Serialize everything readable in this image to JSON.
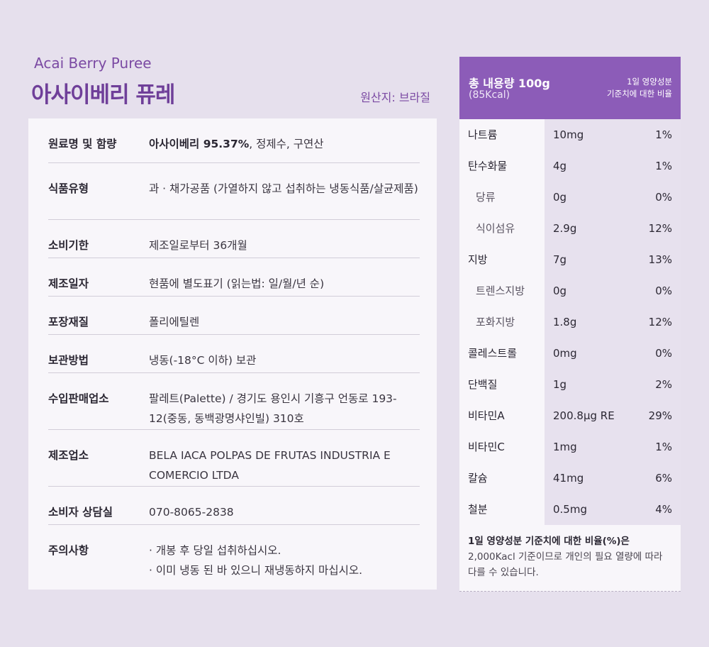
{
  "header": {
    "title_en": "Acai Berry Puree",
    "title_ko": "아사이베리 퓨레",
    "origin": "원산지: 브라질"
  },
  "info": {
    "rows": [
      {
        "label": "원료명 및 함량",
        "value_bold": "아사이베리 95.37%",
        "value": ", 정제수, 구연산"
      },
      {
        "label": "식품유형",
        "value": "과 · 채가공품 (가열하지 않고 섭취하는 냉동식품/살균제품)"
      },
      {
        "label": "소비기한",
        "value": "제조일로부터 36개월"
      },
      {
        "label": "제조일자",
        "value": "현품에 별도표기 (읽는법: 일/월/년 순)"
      },
      {
        "label": "포장재질",
        "value": "폴리에틸렌"
      },
      {
        "label": "보관방법",
        "value": "냉동(-18°C 이하) 보관"
      },
      {
        "label": "수입판매업소",
        "value": "팔레트(Palette) / 경기도 용인시 기흥구 언동로 193-12(중동, 동백광명샤인빌) 310호"
      },
      {
        "label": "제조업소",
        "value": "BELA IACA POLPAS DE FRUTAS INDUSTRIA E COMERCIO LTDA"
      },
      {
        "label": "소비자 상담실",
        "value": "070-8065-2838"
      },
      {
        "label": "주의사항",
        "value_lines": [
          "· 개봉 후 당일 섭취하십시오.",
          "· 이미 냉동 된 바 있으니 재냉동하지 마십시오."
        ]
      }
    ]
  },
  "nutrition": {
    "total": "총 내용량 100g",
    "kcal": "(85Kcal)",
    "daily_1": "1일 영양성분",
    "daily_2": "기준치에 대한 비율",
    "rows": [
      {
        "name": "나트륨",
        "amount": "10mg",
        "pct": "1%",
        "sub": false
      },
      {
        "name": "탄수화물",
        "amount": "4g",
        "pct": "1%",
        "sub": false
      },
      {
        "name": "당류",
        "amount": "0g",
        "pct": "0%",
        "sub": true
      },
      {
        "name": "식이섬유",
        "amount": "2.9g",
        "pct": "12%",
        "sub": true
      },
      {
        "name": "지방",
        "amount": "7g",
        "pct": "13%",
        "sub": false
      },
      {
        "name": "트렌스지방",
        "amount": "0g",
        "pct": "0%",
        "sub": true
      },
      {
        "name": "포화지방",
        "amount": "1.8g",
        "pct": "12%",
        "sub": true
      },
      {
        "name": "콜레스트롤",
        "amount": "0mg",
        "pct": "0%",
        "sub": false
      },
      {
        "name": "단백질",
        "amount": "1g",
        "pct": "2%",
        "sub": false
      },
      {
        "name": "비타민A",
        "amount": "200.8μg RE",
        "pct": "29%",
        "sub": false
      },
      {
        "name": "비타민C",
        "amount": "1mg",
        "pct": "1%",
        "sub": false
      },
      {
        "name": "칼슘",
        "amount": "41mg",
        "pct": "6%",
        "sub": false
      },
      {
        "name": "철분",
        "amount": "0.5mg",
        "pct": "4%",
        "sub": false
      }
    ],
    "foot_title": "1일 영양성분 기준치에 대한 비율(%)은",
    "foot_text": "2,000Kacl 기준이므로 개인의 필요 열량에 따라 다를 수 있습니다."
  }
}
